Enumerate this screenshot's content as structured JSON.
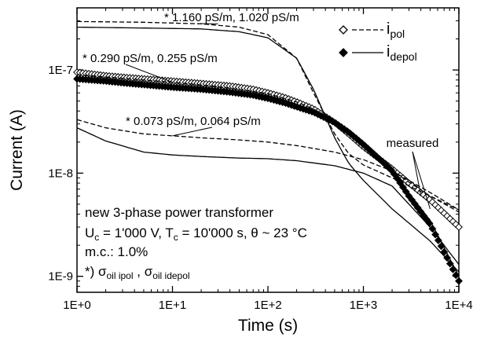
{
  "chart_data": {
    "type": "scatter",
    "xscale": "log",
    "yscale": "log",
    "xlabel": "Time (s)",
    "ylabel": "Current (A)",
    "xlim": [
      1,
      10000
    ],
    "ylim": [
      7e-10,
      4e-07
    ],
    "xtick_labels": [
      "1E+0",
      "1E+1",
      "1E+2",
      "1E+3",
      "1E+4"
    ],
    "ytick_labels": [
      "1E-9",
      "1E-8",
      "1E-7"
    ],
    "legend": {
      "position": "top-right",
      "pol": "i",
      "pol_sub": "pol",
      "depol": "i",
      "depol_sub": "depol"
    },
    "series": [
      {
        "role": "measured",
        "kind": "pol",
        "marker": "open-diamond",
        "x": [
          1,
          2,
          3,
          5,
          10,
          20,
          40,
          70,
          100,
          150,
          200,
          300,
          500,
          700,
          1000,
          1500,
          2000,
          3000,
          5000,
          10000
        ],
        "y": [
          9.5e-08,
          8.8e-08,
          8.5e-08,
          8.2e-08,
          7.8e-08,
          7.4e-08,
          7e-08,
          6.5e-08,
          6e-08,
          5.4e-08,
          4.9e-08,
          4.2e-08,
          3.1e-08,
          2.4e-08,
          1.8e-08,
          1.35e-08,
          1.1e-08,
          8e-09,
          5.5e-09,
          3e-09
        ]
      },
      {
        "role": "measured",
        "kind": "depol",
        "marker": "filled-diamond",
        "x": [
          1,
          2,
          3,
          5,
          10,
          20,
          40,
          70,
          100,
          150,
          200,
          300,
          500,
          700,
          1000,
          1500,
          2000,
          3000,
          5000,
          10000
        ],
        "y": [
          8.2e-08,
          7.8e-08,
          7.5e-08,
          7.2e-08,
          6.8e-08,
          6.5e-08,
          6.1e-08,
          5.7e-08,
          5.3e-08,
          4.8e-08,
          4.4e-08,
          3.9e-08,
          3.1e-08,
          2.5e-08,
          1.9e-08,
          1.35e-08,
          1.05e-08,
          6e-09,
          3.2e-09,
          9e-10
        ]
      },
      {
        "role": "model",
        "kind": "pol",
        "conductivity": "1.160 / 1.020 pS/m",
        "line": "dashed",
        "x": [
          1,
          5,
          20,
          50,
          100,
          200,
          300,
          500,
          700,
          1000,
          2000,
          5000,
          10000
        ],
        "y": [
          2.95e-07,
          2.9e-07,
          2.8e-07,
          2.6e-07,
          2.2e-07,
          1.3e-07,
          6e-08,
          2.4e-08,
          1.55e-08,
          1.2e-08,
          9e-09,
          6e-09,
          4.4e-09
        ]
      },
      {
        "role": "model",
        "kind": "depol",
        "conductivity": "1.160 / 1.020 pS/m",
        "line": "solid",
        "x": [
          1,
          5,
          20,
          50,
          100,
          200,
          300,
          500,
          700,
          1000,
          2000,
          5000,
          10000
        ],
        "y": [
          2.6e-07,
          2.55e-07,
          2.5e-07,
          2.35e-07,
          2.05e-07,
          1.3e-07,
          6.5e-08,
          2.2e-08,
          1.25e-08,
          8.5e-09,
          4.5e-09,
          2.2e-09,
          1.1e-09
        ]
      },
      {
        "role": "model",
        "kind": "pol",
        "conductivity": "0.290 / 0.255 pS/m",
        "line": "dashed",
        "x": [
          1,
          3,
          10,
          30,
          100,
          200,
          300,
          500,
          700,
          1000,
          2000,
          5000,
          10000
        ],
        "y": [
          9e-08,
          8.3e-08,
          7.6e-08,
          6.9e-08,
          5.9e-08,
          4.9e-08,
          4.2e-08,
          3.1e-08,
          2.4e-08,
          1.8e-08,
          1.05e-08,
          6.5e-09,
          4.4e-09
        ]
      },
      {
        "role": "model",
        "kind": "depol",
        "conductivity": "0.290 / 0.255 pS/m",
        "line": "solid",
        "x": [
          1,
          3,
          10,
          30,
          100,
          200,
          300,
          500,
          700,
          1000,
          2000,
          5000,
          10000
        ],
        "y": [
          8e-08,
          7.4e-08,
          6.8e-08,
          6.2e-08,
          5.3e-08,
          4.4e-08,
          3.9e-08,
          3e-08,
          2.4e-08,
          1.85e-08,
          1e-08,
          3.5e-09,
          1e-09
        ]
      },
      {
        "role": "model",
        "kind": "pol",
        "conductivity": "0.073 / 0.064 pS/m",
        "line": "dashed",
        "x": [
          1,
          2,
          5,
          10,
          20,
          50,
          100,
          200,
          500,
          1000,
          2000,
          5000,
          10000
        ],
        "y": [
          3.3e-08,
          2.75e-08,
          2.4e-08,
          2.3e-08,
          2.2e-08,
          2.1e-08,
          2e-08,
          1.85e-08,
          1.6e-08,
          1.35e-08,
          1.05e-08,
          6e-09,
          4.2e-09
        ]
      },
      {
        "role": "model",
        "kind": "depol",
        "conductivity": "0.073 / 0.064 pS/m",
        "line": "solid",
        "x": [
          1,
          2,
          5,
          10,
          20,
          50,
          100,
          200,
          500,
          1000,
          2000,
          5000,
          10000
        ],
        "y": [
          2.75e-08,
          2.05e-08,
          1.6e-08,
          1.5e-08,
          1.45e-08,
          1.4e-08,
          1.38e-08,
          1.32e-08,
          1.18e-08,
          1e-08,
          7.5e-09,
          3e-09,
          1.3e-09
        ]
      }
    ],
    "annotations": [
      {
        "text": "* 1.160 pS/m, 1.020 pS/m",
        "target": [
          30,
          2.8e-07
        ]
      },
      {
        "text": "* 0.290 pS/m, 0.255 pS/m",
        "target": [
          10,
          7.6e-08
        ]
      },
      {
        "text": "* 0.073 pS/m, 0.064 pS/m",
        "target": [
          10,
          2.3e-08
        ]
      },
      {
        "text": "measured",
        "targets": [
          [
            4000,
            6e-09
          ],
          [
            5000,
            4.5e-09
          ]
        ]
      }
    ],
    "info_box": {
      "line1": "new 3-phase power transformer",
      "line2_prefix": "U",
      "line2_sub1": "c",
      "line2_mid": " = 1'000 V, T",
      "line2_sub2": "c",
      "line2_suffix": " = 10'000 s, θ ~ 23 °C",
      "line3": "m.c.: 1.0%",
      "line4_prefix": "*) σ",
      "line4_sub1": "oil ipol",
      "line4_mid": " , σ",
      "line4_sub2": "oil idepol"
    },
    "grid": false
  }
}
